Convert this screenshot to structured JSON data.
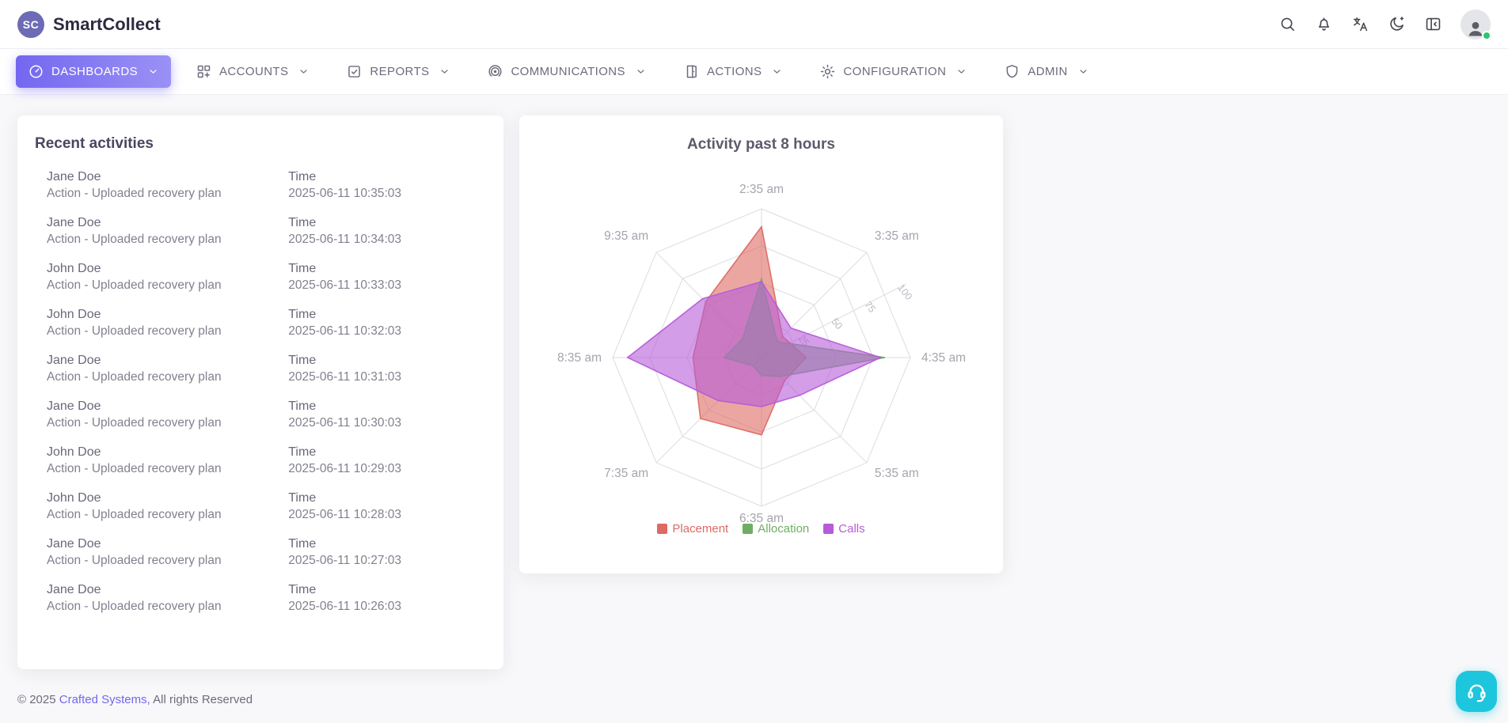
{
  "header": {
    "app_name": "SmartCollect",
    "logo_text": "SC",
    "icon_names": [
      "search",
      "notifications",
      "translate",
      "dark-mode",
      "layout-collapse",
      "avatar"
    ],
    "user_status_color": "#28c76f"
  },
  "nav": {
    "items": [
      {
        "label": "DASHBOARDS",
        "icon": "gauge",
        "active": true
      },
      {
        "label": "ACCOUNTS",
        "icon": "grid",
        "active": false
      },
      {
        "label": "REPORTS",
        "icon": "report",
        "active": false
      },
      {
        "label": "COMMUNICATIONS",
        "icon": "broadcast",
        "active": false
      },
      {
        "label": "ACTIONS",
        "icon": "door",
        "active": false
      },
      {
        "label": "CONFIGURATION",
        "icon": "gear",
        "active": false
      },
      {
        "label": "ADMIN",
        "icon": "shield",
        "active": false
      }
    ],
    "active_color": "#7367f0"
  },
  "recent": {
    "title": "Recent activities",
    "time_label": "Time",
    "rows": [
      {
        "name": "Jane Doe",
        "action": "Action - Uploaded recovery plan",
        "time": "2025-06-11 10:35:03"
      },
      {
        "name": "Jane Doe",
        "action": "Action - Uploaded recovery plan",
        "time": "2025-06-11 10:34:03"
      },
      {
        "name": "John Doe",
        "action": "Action - Uploaded recovery plan",
        "time": "2025-06-11 10:33:03"
      },
      {
        "name": "John Doe",
        "action": "Action - Uploaded recovery plan",
        "time": "2025-06-11 10:32:03"
      },
      {
        "name": "Jane Doe",
        "action": "Action - Uploaded recovery plan",
        "time": "2025-06-11 10:31:03"
      },
      {
        "name": "Jane Doe",
        "action": "Action - Uploaded recovery plan",
        "time": "2025-06-11 10:30:03"
      },
      {
        "name": "John Doe",
        "action": "Action - Uploaded recovery plan",
        "time": "2025-06-11 10:29:03"
      },
      {
        "name": "John Doe",
        "action": "Action - Uploaded recovery plan",
        "time": "2025-06-11 10:28:03"
      },
      {
        "name": "Jane Doe",
        "action": "Action - Uploaded recovery plan",
        "time": "2025-06-11 10:27:03"
      },
      {
        "name": "Jane Doe",
        "action": "Action - Uploaded recovery plan",
        "time": "2025-06-11 10:26:03"
      }
    ]
  },
  "chart_data": {
    "type": "radar",
    "title": "Activity past 8 hours",
    "categories": [
      "2:35 am",
      "3:35 am",
      "4:35 am",
      "5:35 am",
      "6:35 am",
      "7:35 am",
      "8:35 am",
      "9:35 am"
    ],
    "axis_max": 100,
    "rings": [
      25,
      50,
      75,
      100
    ],
    "tick_labels": [
      "25",
      "50",
      "75",
      "100"
    ],
    "grid_color": "#dcdbe2",
    "axis_label_color": "#a6a4ad",
    "legend_position": "bottom",
    "series": [
      {
        "name": "Placement",
        "color": "#dd6a64",
        "values": [
          88,
          20,
          30,
          22,
          52,
          58,
          46,
          53
        ]
      },
      {
        "name": "Allocation",
        "color": "#6fae62",
        "values": [
          53,
          15,
          83,
          18,
          12,
          8,
          25,
          18
        ]
      },
      {
        "name": "Calls",
        "color": "#b65cd8",
        "values": [
          51,
          28,
          80,
          36,
          33,
          41,
          90,
          56
        ]
      }
    ]
  },
  "footer": {
    "copyright": "© 2025",
    "link_text": "Crafted Systems,",
    "suffix": "All rights Reserved"
  },
  "fab": {
    "icon": "headset",
    "color": "#1ec6dd"
  }
}
